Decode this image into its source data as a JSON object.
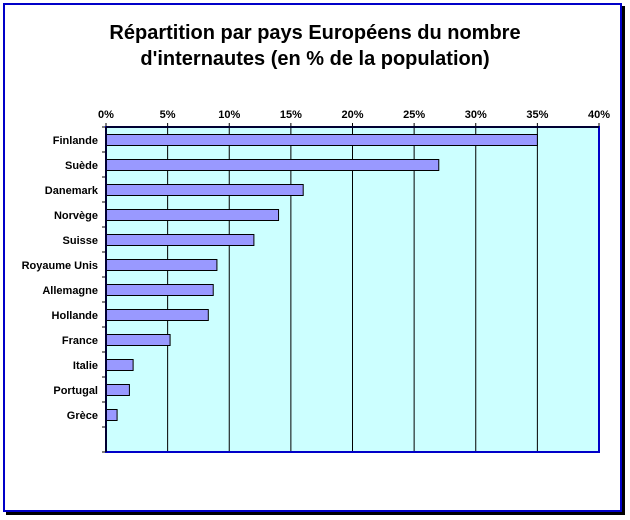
{
  "chart_data": {
    "type": "bar",
    "orientation": "horizontal",
    "title_lines": [
      "Répartition par pays Européens du nombre",
      "d'internautes (en % de la population)"
    ],
    "categories": [
      "Finlande",
      "Suède",
      "Danemark",
      "Norvège",
      "Suisse",
      "Royaume Unis",
      "Allemagne",
      "Hollande",
      "France",
      "Italie",
      "Portugal",
      "Grèce"
    ],
    "values": [
      35,
      27,
      16,
      14,
      12,
      9,
      8.7,
      8.3,
      5.2,
      2.2,
      1.9,
      0.9
    ],
    "xlim": [
      0,
      40
    ],
    "x_ticks": [
      "0%",
      "5%",
      "10%",
      "15%",
      "20%",
      "25%",
      "30%",
      "35%",
      "40%"
    ],
    "x_axis_position": "top",
    "grid": "vertical",
    "colors": {
      "bar": "#9999ff",
      "plot_background": "#ccffff",
      "frame_border": "#0000c8"
    }
  }
}
